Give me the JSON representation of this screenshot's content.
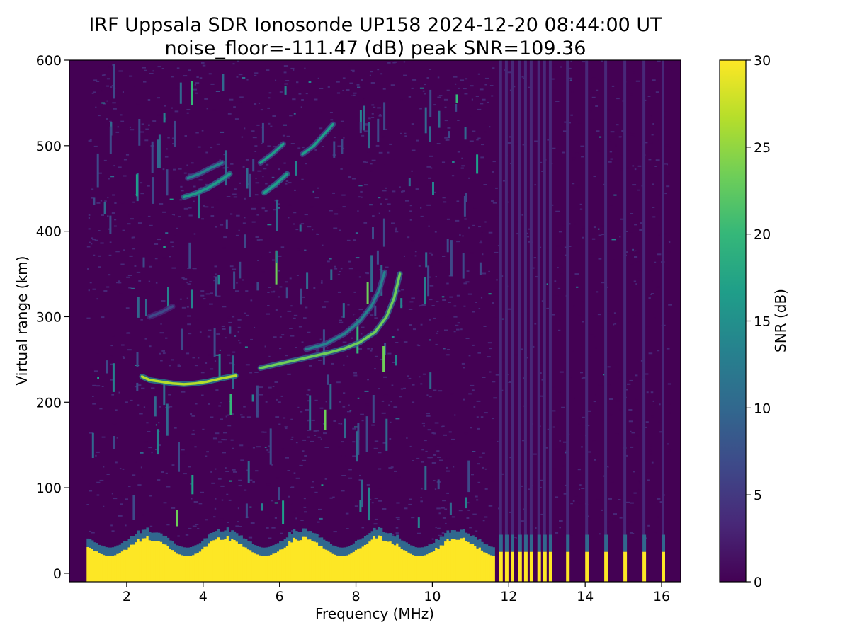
{
  "chart_data": {
    "type": "heatmap",
    "title": "IRF Uppsala SDR Ionosonde UP158 2024-12-20 08:44:00  UT",
    "subtitle": "noise_floor=-111.47 (dB) peak SNR=109.36",
    "xlabel": "Frequency (MHz)",
    "ylabel": "Virtual range (km)",
    "colorbar_label": "SNR (dB)",
    "xlim": [
      0.5,
      16.5
    ],
    "ylim": [
      -10,
      600
    ],
    "clim": [
      0,
      30
    ],
    "x_ticks": [
      "2",
      "4",
      "6",
      "8",
      "10",
      "12",
      "14",
      "16"
    ],
    "y_ticks": [
      "0",
      "100",
      "200",
      "300",
      "400",
      "500",
      "600"
    ],
    "colorbar_ticks": [
      "0",
      "5",
      "10",
      "15",
      "20",
      "25",
      "30"
    ],
    "colormap": [
      "#440154",
      "#482878",
      "#3e4989",
      "#31688e",
      "#26828e",
      "#1f9e89",
      "#35b779",
      "#6ece58",
      "#b5de2b",
      "#fde725"
    ],
    "grid": false,
    "ground_echo": {
      "continuous_range_mhz": [
        0.95,
        11.6
      ],
      "range_top_km": [
        20,
        45
      ],
      "snr_db": 30,
      "discrete_channels_mhz": [
        11.75,
        11.9,
        12.05,
        12.25,
        12.4,
        12.55,
        12.75,
        12.9,
        13.05,
        13.5,
        14.0,
        14.5,
        15.0,
        15.5,
        16.0
      ]
    },
    "traces": [
      {
        "points": [
          [
            2.4,
            230
          ],
          [
            2.6,
            226
          ],
          [
            2.9,
            224
          ],
          [
            3.2,
            222
          ],
          [
            3.5,
            221
          ],
          [
            3.8,
            222
          ],
          [
            4.1,
            224
          ],
          [
            4.5,
            228
          ],
          [
            4.85,
            231
          ]
        ],
        "snr_db": 28
      },
      {
        "points": [
          [
            5.5,
            240
          ],
          [
            5.8,
            243
          ],
          [
            6.1,
            246
          ],
          [
            6.5,
            250
          ],
          [
            6.9,
            254
          ],
          [
            7.3,
            258
          ],
          [
            7.7,
            263
          ],
          [
            8.1,
            270
          ],
          [
            8.5,
            282
          ],
          [
            8.8,
            300
          ],
          [
            9.0,
            322
          ],
          [
            9.15,
            350
          ]
        ],
        "snr_db": 22
      },
      {
        "points": [
          [
            6.7,
            262
          ],
          [
            7.2,
            268
          ],
          [
            7.7,
            280
          ],
          [
            8.1,
            295
          ],
          [
            8.4,
            312
          ],
          [
            8.6,
            330
          ],
          [
            8.75,
            352
          ]
        ],
        "snr_db": 14
      },
      {
        "points": [
          [
            3.5,
            440
          ],
          [
            3.8,
            444
          ],
          [
            4.1,
            450
          ],
          [
            4.4,
            458
          ],
          [
            4.7,
            467
          ]
        ],
        "snr_db": 18
      },
      {
        "points": [
          [
            3.6,
            462
          ],
          [
            3.9,
            467
          ],
          [
            4.2,
            474
          ],
          [
            4.5,
            480
          ]
        ],
        "snr_db": 12
      },
      {
        "points": [
          [
            5.6,
            445
          ],
          [
            5.9,
            455
          ],
          [
            6.2,
            467
          ]
        ],
        "snr_db": 18
      },
      {
        "points": [
          [
            5.5,
            480
          ],
          [
            5.8,
            490
          ],
          [
            6.1,
            502
          ]
        ],
        "snr_db": 15
      },
      {
        "points": [
          [
            6.6,
            490
          ],
          [
            6.9,
            500
          ],
          [
            7.2,
            515
          ],
          [
            7.4,
            525
          ]
        ],
        "snr_db": 15
      },
      {
        "points": [
          [
            2.6,
            300
          ],
          [
            2.9,
            305
          ],
          [
            3.2,
            312
          ]
        ],
        "snr_db": 8
      }
    ]
  }
}
